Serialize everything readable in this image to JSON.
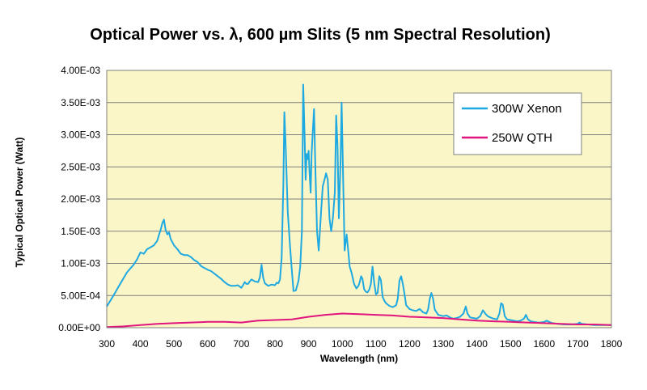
{
  "chart_data": {
    "type": "line",
    "title": "Optical Power vs. λ, 600 µm Slits (5 nm Spectral Resolution)",
    "xlabel": "Wavelength (nm)",
    "ylabel": "Typical Optical Power (Watt)",
    "xlim": [
      300,
      1800
    ],
    "ylim": [
      0,
      0.004
    ],
    "xticks": [
      300,
      400,
      500,
      600,
      700,
      800,
      900,
      1000,
      1100,
      1200,
      1300,
      1400,
      1500,
      1600,
      1700,
      1800
    ],
    "xtick_labels": [
      "300",
      "400",
      "500",
      "600",
      "700",
      "800",
      "900",
      "1000",
      "1100",
      "1200",
      "1300",
      "1400",
      "1500",
      "1600",
      "1700",
      "1800"
    ],
    "yticks": [
      0,
      0.0005,
      0.001,
      0.0015,
      0.002,
      0.0025,
      0.003,
      0.0035,
      0.004
    ],
    "ytick_labels": [
      "0.00E+00",
      "5.00E-04",
      "1.00E-03",
      "1.50E-03",
      "2.00E-03",
      "2.50E-03",
      "3.00E-03",
      "3.50E-03",
      "4.00E-03"
    ],
    "grid": "horizontal",
    "legend_position": "top-right",
    "plot_background": "#fbf6c8",
    "series": [
      {
        "name": "300W Xenon",
        "color": "#1fa9e1",
        "points": [
          [
            300,
            0.00033
          ],
          [
            320,
            0.0005
          ],
          [
            340,
            0.00068
          ],
          [
            360,
            0.00086
          ],
          [
            370,
            0.00092
          ],
          [
            380,
            0.00098
          ],
          [
            390,
            0.00106
          ],
          [
            400,
            0.00117
          ],
          [
            410,
            0.00115
          ],
          [
            420,
            0.00122
          ],
          [
            430,
            0.00125
          ],
          [
            440,
            0.00128
          ],
          [
            450,
            0.00135
          ],
          [
            455,
            0.00144
          ],
          [
            460,
            0.00152
          ],
          [
            465,
            0.00162
          ],
          [
            470,
            0.00168
          ],
          [
            475,
            0.00152
          ],
          [
            480,
            0.00145
          ],
          [
            485,
            0.00148
          ],
          [
            490,
            0.00138
          ],
          [
            500,
            0.00128
          ],
          [
            510,
            0.00122
          ],
          [
            520,
            0.00115
          ],
          [
            530,
            0.00113
          ],
          [
            540,
            0.00113
          ],
          [
            550,
            0.0011
          ],
          [
            560,
            0.00105
          ],
          [
            570,
            0.00102
          ],
          [
            580,
            0.00096
          ],
          [
            590,
            0.00093
          ],
          [
            600,
            0.0009
          ],
          [
            610,
            0.00088
          ],
          [
            620,
            0.00084
          ],
          [
            630,
            0.0008
          ],
          [
            640,
            0.00076
          ],
          [
            650,
            0.00071
          ],
          [
            660,
            0.00067
          ],
          [
            670,
            0.00065
          ],
          [
            680,
            0.00065
          ],
          [
            690,
            0.00066
          ],
          [
            700,
            0.00062
          ],
          [
            705,
            0.00066
          ],
          [
            710,
            0.00071
          ],
          [
            715,
            0.00068
          ],
          [
            720,
            0.00068
          ],
          [
            725,
            0.00072
          ],
          [
            730,
            0.00075
          ],
          [
            740,
            0.00072
          ],
          [
            750,
            0.00071
          ],
          [
            755,
            0.00078
          ],
          [
            760,
            0.00098
          ],
          [
            765,
            0.00078
          ],
          [
            770,
            0.00069
          ],
          [
            780,
            0.00065
          ],
          [
            790,
            0.00067
          ],
          [
            800,
            0.00066
          ],
          [
            805,
            0.0007
          ],
          [
            810,
            0.00069
          ],
          [
            815,
            0.00075
          ],
          [
            820,
            0.0011
          ],
          [
            825,
            0.00225
          ],
          [
            828,
            0.00335
          ],
          [
            832,
            0.0028
          ],
          [
            838,
            0.0018
          ],
          [
            845,
            0.00125
          ],
          [
            850,
            0.0009
          ],
          [
            855,
            0.00057
          ],
          [
            862,
            0.00058
          ],
          [
            870,
            0.00073
          ],
          [
            875,
            0.00095
          ],
          [
            880,
            0.0015
          ],
          [
            884,
            0.00378
          ],
          [
            888,
            0.003
          ],
          [
            891,
            0.0023
          ],
          [
            894,
            0.0027
          ],
          [
            897,
            0.00262
          ],
          [
            900,
            0.00275
          ],
          [
            903,
            0.0024
          ],
          [
            906,
            0.0021
          ],
          [
            909,
            0.0027
          ],
          [
            912,
            0.00302
          ],
          [
            916,
            0.0034
          ],
          [
            920,
            0.0025
          ],
          [
            925,
            0.0015
          ],
          [
            930,
            0.0012
          ],
          [
            937,
            0.0018
          ],
          [
            942,
            0.0022
          ],
          [
            947,
            0.0023
          ],
          [
            952,
            0.0024
          ],
          [
            957,
            0.0023
          ],
          [
            962,
            0.0017
          ],
          [
            967,
            0.0015
          ],
          [
            972,
            0.0017
          ],
          [
            978,
            0.0021
          ],
          [
            982,
            0.0033
          ],
          [
            986,
            0.0028
          ],
          [
            990,
            0.0017
          ],
          [
            995,
            0.0026
          ],
          [
            998,
            0.0035
          ],
          [
            1002,
            0.0025
          ],
          [
            1007,
            0.0012
          ],
          [
            1013,
            0.00145
          ],
          [
            1018,
            0.00118
          ],
          [
            1022,
            0.00095
          ],
          [
            1028,
            0.00085
          ],
          [
            1035,
            0.00068
          ],
          [
            1042,
            0.00061
          ],
          [
            1048,
            0.00065
          ],
          [
            1052,
            0.00071
          ],
          [
            1056,
            0.0008
          ],
          [
            1060,
            0.00076
          ],
          [
            1065,
            0.0006
          ],
          [
            1070,
            0.00056
          ],
          [
            1075,
            0.00055
          ],
          [
            1080,
            0.00059
          ],
          [
            1085,
            0.00068
          ],
          [
            1090,
            0.00095
          ],
          [
            1095,
            0.0007
          ],
          [
            1100,
            0.00052
          ],
          [
            1105,
            0.00054
          ],
          [
            1110,
            0.0008
          ],
          [
            1115,
            0.00074
          ],
          [
            1120,
            0.00048
          ],
          [
            1125,
            0.00042
          ],
          [
            1130,
            0.00038
          ],
          [
            1140,
            0.00034
          ],
          [
            1150,
            0.00032
          ],
          [
            1160,
            0.00035
          ],
          [
            1165,
            0.00045
          ],
          [
            1170,
            0.00073
          ],
          [
            1175,
            0.0008
          ],
          [
            1180,
            0.00068
          ],
          [
            1185,
            0.00052
          ],
          [
            1190,
            0.00035
          ],
          [
            1200,
            0.00029
          ],
          [
            1210,
            0.00027
          ],
          [
            1220,
            0.00026
          ],
          [
            1230,
            0.00029
          ],
          [
            1240,
            0.00024
          ],
          [
            1250,
            0.00022
          ],
          [
            1255,
            0.00028
          ],
          [
            1260,
            0.00045
          ],
          [
            1265,
            0.00054
          ],
          [
            1270,
            0.00045
          ],
          [
            1275,
            0.00028
          ],
          [
            1285,
            0.0002
          ],
          [
            1300,
            0.00018
          ],
          [
            1310,
            0.00019
          ],
          [
            1320,
            0.00016
          ],
          [
            1330,
            0.00014
          ],
          [
            1340,
            0.00015
          ],
          [
            1350,
            0.00017
          ],
          [
            1360,
            0.00022
          ],
          [
            1367,
            0.00033
          ],
          [
            1372,
            0.00022
          ],
          [
            1380,
            0.00016
          ],
          [
            1390,
            0.00015
          ],
          [
            1400,
            0.00014
          ],
          [
            1410,
            0.00018
          ],
          [
            1418,
            0.00027
          ],
          [
            1425,
            0.00022
          ],
          [
            1432,
            0.00018
          ],
          [
            1440,
            0.00016
          ],
          [
            1450,
            0.00014
          ],
          [
            1460,
            0.00013
          ],
          [
            1467,
            0.00022
          ],
          [
            1472,
            0.00038
          ],
          [
            1477,
            0.00036
          ],
          [
            1483,
            0.00018
          ],
          [
            1490,
            0.00013
          ],
          [
            1500,
            0.00012
          ],
          [
            1510,
            0.00011
          ],
          [
            1520,
            0.0001
          ],
          [
            1530,
            0.00011
          ],
          [
            1540,
            0.00014
          ],
          [
            1546,
            0.0002
          ],
          [
            1552,
            0.00013
          ],
          [
            1560,
            0.0001
          ],
          [
            1570,
            9e-05
          ],
          [
            1580,
            8e-05
          ],
          [
            1590,
            8e-05
          ],
          [
            1600,
            9e-05
          ],
          [
            1608,
            0.00011
          ],
          [
            1615,
            9e-05
          ],
          [
            1625,
            7e-05
          ],
          [
            1640,
            6e-05
          ],
          [
            1660,
            5e-05
          ],
          [
            1680,
            5e-05
          ],
          [
            1700,
            6e-05
          ],
          [
            1705,
            8e-05
          ],
          [
            1712,
            6e-05
          ],
          [
            1730,
            5e-05
          ],
          [
            1750,
            4e-05
          ],
          [
            1770,
            4e-05
          ],
          [
            1800,
            4e-05
          ]
        ]
      },
      {
        "name": "250W QTH",
        "color": "#e0157d",
        "points": [
          [
            300,
            1e-05
          ],
          [
            350,
            2e-05
          ],
          [
            400,
            4e-05
          ],
          [
            450,
            6e-05
          ],
          [
            500,
            7e-05
          ],
          [
            550,
            8e-05
          ],
          [
            600,
            9e-05
          ],
          [
            650,
            9e-05
          ],
          [
            700,
            8e-05
          ],
          [
            750,
            0.00011
          ],
          [
            800,
            0.00012
          ],
          [
            850,
            0.00013
          ],
          [
            900,
            0.00017
          ],
          [
            950,
            0.0002
          ],
          [
            1000,
            0.00022
          ],
          [
            1050,
            0.00021
          ],
          [
            1100,
            0.0002
          ],
          [
            1150,
            0.00019
          ],
          [
            1200,
            0.00017
          ],
          [
            1250,
            0.00016
          ],
          [
            1300,
            0.00015
          ],
          [
            1350,
            0.00013
          ],
          [
            1400,
            0.00011
          ],
          [
            1450,
            0.0001
          ],
          [
            1500,
            9e-05
          ],
          [
            1550,
            8e-05
          ],
          [
            1600,
            7e-05
          ],
          [
            1650,
            6e-05
          ],
          [
            1700,
            5e-05
          ],
          [
            1750,
            5e-05
          ],
          [
            1800,
            4e-05
          ]
        ]
      }
    ]
  }
}
